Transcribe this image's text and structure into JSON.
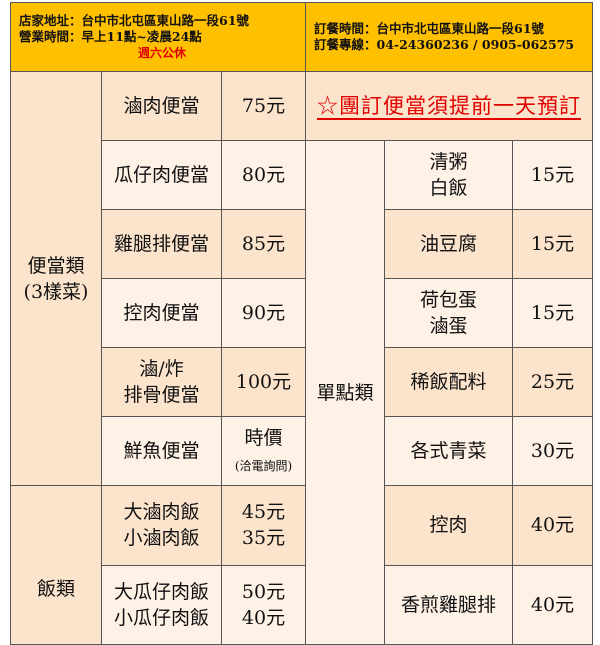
{
  "header": {
    "left": {
      "address": "店家地址：台中市北屯區東山路一段61號",
      "hours": "營業時間：早上11點~凌晨24點",
      "closed": "週六公休"
    },
    "right": {
      "order_time": "訂餐時間：台中市北屯區東山路一段61號",
      "order_phone": "訂餐專線：04-24360236 / 0905-062575"
    }
  },
  "notice": "☆團訂便當須提前一天預訂",
  "bento": {
    "category_line1": "便當類",
    "category_line2": "(3樣菜)",
    "items": [
      {
        "name": "滷肉便當",
        "price": "75元"
      },
      {
        "name": "瓜仔肉便當",
        "price": "80元"
      },
      {
        "name": "雞腿排便當",
        "price": "85元"
      },
      {
        "name": "控肉便當",
        "price": "90元"
      },
      {
        "name_line1": "滷/炸",
        "name_line2": "排骨便當",
        "price": "100元"
      },
      {
        "name": "鮮魚便當",
        "price": "時價",
        "price_note": "(洽電詢問)"
      }
    ]
  },
  "rice": {
    "category": "飯類",
    "items": [
      {
        "name_line1": "大滷肉飯",
        "name_line2": "小滷肉飯",
        "price_line1": "45元",
        "price_line2": "35元"
      },
      {
        "name_line1": "大瓜仔肉飯",
        "name_line2": "小瓜仔肉飯",
        "price_line1": "50元",
        "price_line2": "40元"
      }
    ]
  },
  "sides": {
    "category": "單點類",
    "items": [
      {
        "name_line1": "清粥",
        "name_line2": "白飯",
        "price": "15元"
      },
      {
        "name": "油豆腐",
        "price": "15元"
      },
      {
        "name_line1": "荷包蛋",
        "name_line2": "滷蛋",
        "price": "15元"
      },
      {
        "name": "稀飯配料",
        "price": "25元"
      },
      {
        "name": "各式青菜",
        "price": "30元"
      },
      {
        "name": "控肉",
        "price": "40元"
      },
      {
        "name": "香煎雞腿排",
        "price": "40元"
      }
    ]
  },
  "colors": {
    "header": "#FFC000",
    "peach": "#FCE4CC",
    "light": "#FEF1E6",
    "red": "#E00000"
  }
}
